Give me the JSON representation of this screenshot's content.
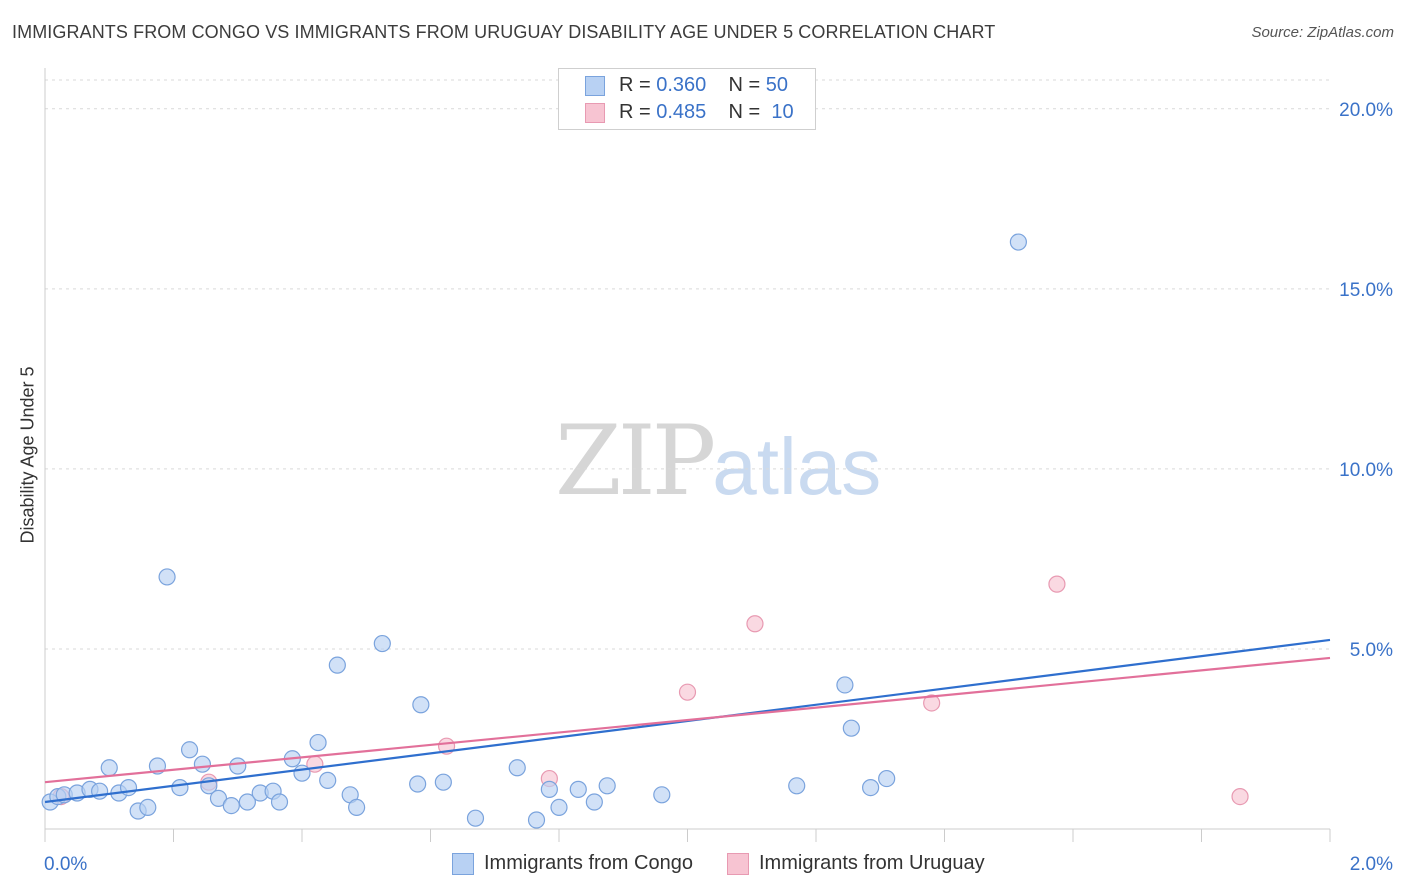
{
  "title": "IMMIGRANTS FROM CONGO VS IMMIGRANTS FROM URUGUAY DISABILITY AGE UNDER 5 CORRELATION CHART",
  "source": "Source: ZipAtlas.com",
  "watermark": {
    "zip": "ZIP",
    "atlas": "atlas"
  },
  "legend": {
    "r_label": "R =",
    "n_label": "N =",
    "congo": {
      "r": "0.360",
      "n": "50"
    },
    "uruguay": {
      "r": "0.485",
      "n": "10"
    }
  },
  "colors": {
    "congo_fill": "#b8d1f3",
    "congo_stroke": "#7aa3dd",
    "congo_line": "#2f6fce",
    "uruguay_fill": "#f7c4d2",
    "uruguay_stroke": "#e89ab2",
    "uruguay_line": "#e2709a",
    "axis_tick_text": "#3a72c8",
    "grid": "#d9d9d9"
  },
  "chart_data": {
    "type": "scatter",
    "title": "IMMIGRANTS FROM CONGO VS IMMIGRANTS FROM URUGUAY DISABILITY AGE UNDER 5 CORRELATION CHART",
    "xlabel": "",
    "ylabel": "Disability Age Under 5",
    "xlim": [
      0,
      2.0
    ],
    "ylim": [
      0,
      20.8
    ],
    "x_ticks": [
      {
        "value": 0,
        "label": "0.0%"
      },
      {
        "value": 2.0,
        "label": "2.0%"
      }
    ],
    "y_ticks": [
      {
        "value": 5,
        "label": "5.0%"
      },
      {
        "value": 10,
        "label": "10.0%"
      },
      {
        "value": 15,
        "label": "15.0%"
      },
      {
        "value": 20,
        "label": "20.0%"
      }
    ],
    "grid": true,
    "legend_position": "bottom",
    "series": [
      {
        "name": "Immigrants from Congo",
        "points": [
          [
            0.008,
            0.75
          ],
          [
            0.02,
            0.9
          ],
          [
            0.03,
            0.95
          ],
          [
            0.05,
            1.0
          ],
          [
            0.07,
            1.1
          ],
          [
            0.085,
            1.05
          ],
          [
            0.1,
            1.7
          ],
          [
            0.115,
            1.0
          ],
          [
            0.13,
            1.15
          ],
          [
            0.145,
            0.5
          ],
          [
            0.16,
            0.6
          ],
          [
            0.175,
            1.75
          ],
          [
            0.19,
            7.0
          ],
          [
            0.21,
            1.15
          ],
          [
            0.225,
            2.2
          ],
          [
            0.245,
            1.8
          ],
          [
            0.255,
            1.2
          ],
          [
            0.27,
            0.85
          ],
          [
            0.29,
            0.65
          ],
          [
            0.3,
            1.75
          ],
          [
            0.315,
            0.75
          ],
          [
            0.335,
            1.0
          ],
          [
            0.355,
            1.05
          ],
          [
            0.365,
            0.75
          ],
          [
            0.385,
            1.95
          ],
          [
            0.4,
            1.55
          ],
          [
            0.425,
            2.4
          ],
          [
            0.44,
            1.35
          ],
          [
            0.455,
            4.55
          ],
          [
            0.475,
            0.95
          ],
          [
            0.485,
            0.6
          ],
          [
            0.525,
            5.15
          ],
          [
            0.58,
            1.25
          ],
          [
            0.585,
            3.45
          ],
          [
            0.62,
            1.3
          ],
          [
            0.67,
            0.3
          ],
          [
            0.735,
            1.7
          ],
          [
            0.765,
            0.25
          ],
          [
            0.785,
            1.1
          ],
          [
            0.8,
            0.6
          ],
          [
            0.83,
            1.1
          ],
          [
            0.855,
            0.75
          ],
          [
            0.875,
            1.2
          ],
          [
            0.96,
            0.95
          ],
          [
            1.17,
            1.2
          ],
          [
            1.245,
            4.0
          ],
          [
            1.255,
            2.8
          ],
          [
            1.285,
            1.15
          ],
          [
            1.31,
            1.4
          ],
          [
            1.515,
            16.3
          ]
        ]
      },
      {
        "name": "Immigrants from Uruguay",
        "points": [
          [
            0.025,
            0.9
          ],
          [
            0.255,
            1.3
          ],
          [
            0.42,
            1.8
          ],
          [
            0.625,
            2.3
          ],
          [
            0.785,
            1.4
          ],
          [
            1.0,
            3.8
          ],
          [
            1.105,
            5.7
          ],
          [
            1.38,
            3.5
          ],
          [
            1.575,
            6.8
          ],
          [
            1.86,
            0.9
          ]
        ]
      }
    ],
    "trend_lines": [
      {
        "series": "Immigrants from Congo",
        "x": [
          0,
          2.0
        ],
        "y": [
          0.75,
          5.25
        ]
      },
      {
        "series": "Immigrants from Uruguay",
        "x": [
          0,
          2.0
        ],
        "y": [
          1.3,
          4.75
        ]
      }
    ]
  }
}
